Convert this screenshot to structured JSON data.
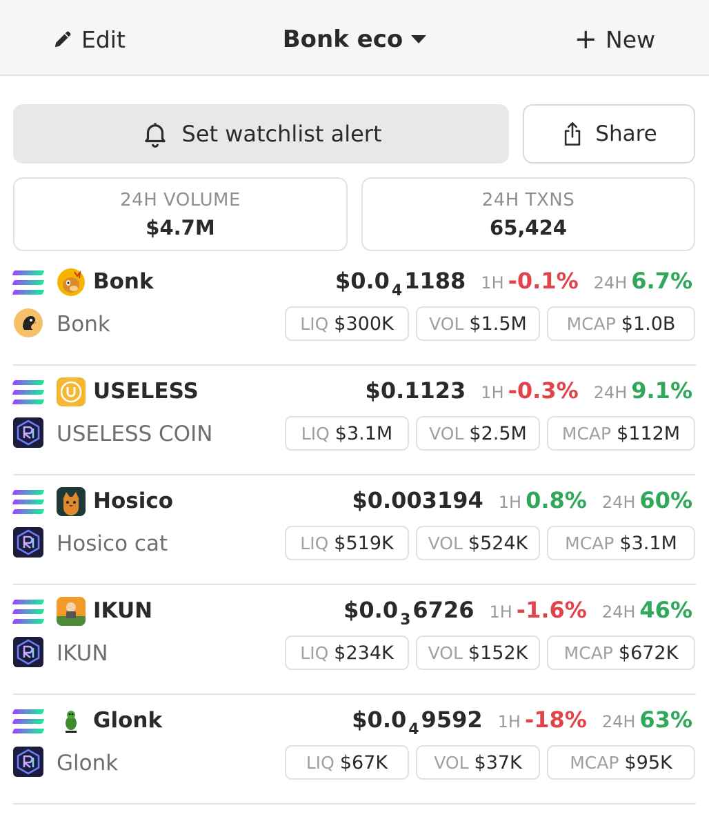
{
  "header": {
    "edit_label": "Edit",
    "title": "Bonk eco",
    "new_label": "New"
  },
  "actions": {
    "alert_label": "Set watchlist alert",
    "share_label": "Share"
  },
  "stats": [
    {
      "label": "24H VOLUME",
      "value": "$4.7M"
    },
    {
      "label": "24H TXNS",
      "value": "65,424"
    }
  ],
  "labels": {
    "h1": "1H",
    "h24": "24H",
    "liq": "LIQ",
    "vol": "VOL",
    "mcap": "MCAP"
  },
  "tokens": [
    {
      "symbol": "Bonk",
      "name": "Bonk",
      "price_prefix": "$0.0",
      "price_sub": "4",
      "price_main": "1188",
      "change_1h": "-0.1%",
      "change_24h": "6.7%",
      "liq": "$300K",
      "vol": "$1.5M",
      "mcap": "$1.0B"
    },
    {
      "symbol": "USELESS",
      "name": "USELESS COIN",
      "price_prefix": "$0.1123",
      "price_sub": "",
      "price_main": "",
      "change_1h": "-0.3%",
      "change_24h": "9.1%",
      "liq": "$3.1M",
      "vol": "$2.5M",
      "mcap": "$112M"
    },
    {
      "symbol": "Hosico",
      "name": "Hosico cat",
      "price_prefix": "$0.003194",
      "price_sub": "",
      "price_main": "",
      "change_1h": "0.8%",
      "change_24h": "60%",
      "liq": "$519K",
      "vol": "$524K",
      "mcap": "$3.1M"
    },
    {
      "symbol": "IKUN",
      "name": "IKUN",
      "price_prefix": "$0.0",
      "price_sub": "3",
      "price_main": "6726",
      "change_1h": "-1.6%",
      "change_24h": "46%",
      "liq": "$234K",
      "vol": "$152K",
      "mcap": "$672K"
    },
    {
      "symbol": "Glonk",
      "name": "Glonk",
      "price_prefix": "$0.0",
      "price_sub": "4",
      "price_main": "9592",
      "change_1h": "-18%",
      "change_24h": "63%",
      "liq": "$67K",
      "vol": "$37K",
      "mcap": "$95K"
    }
  ],
  "icons": {
    "chain": "solana-icon",
    "dex_0": "penguin-dex-icon",
    "dex_other": "raydium-icon",
    "colors": {
      "negative": "#e0434a",
      "positive": "#2fa85a"
    }
  }
}
